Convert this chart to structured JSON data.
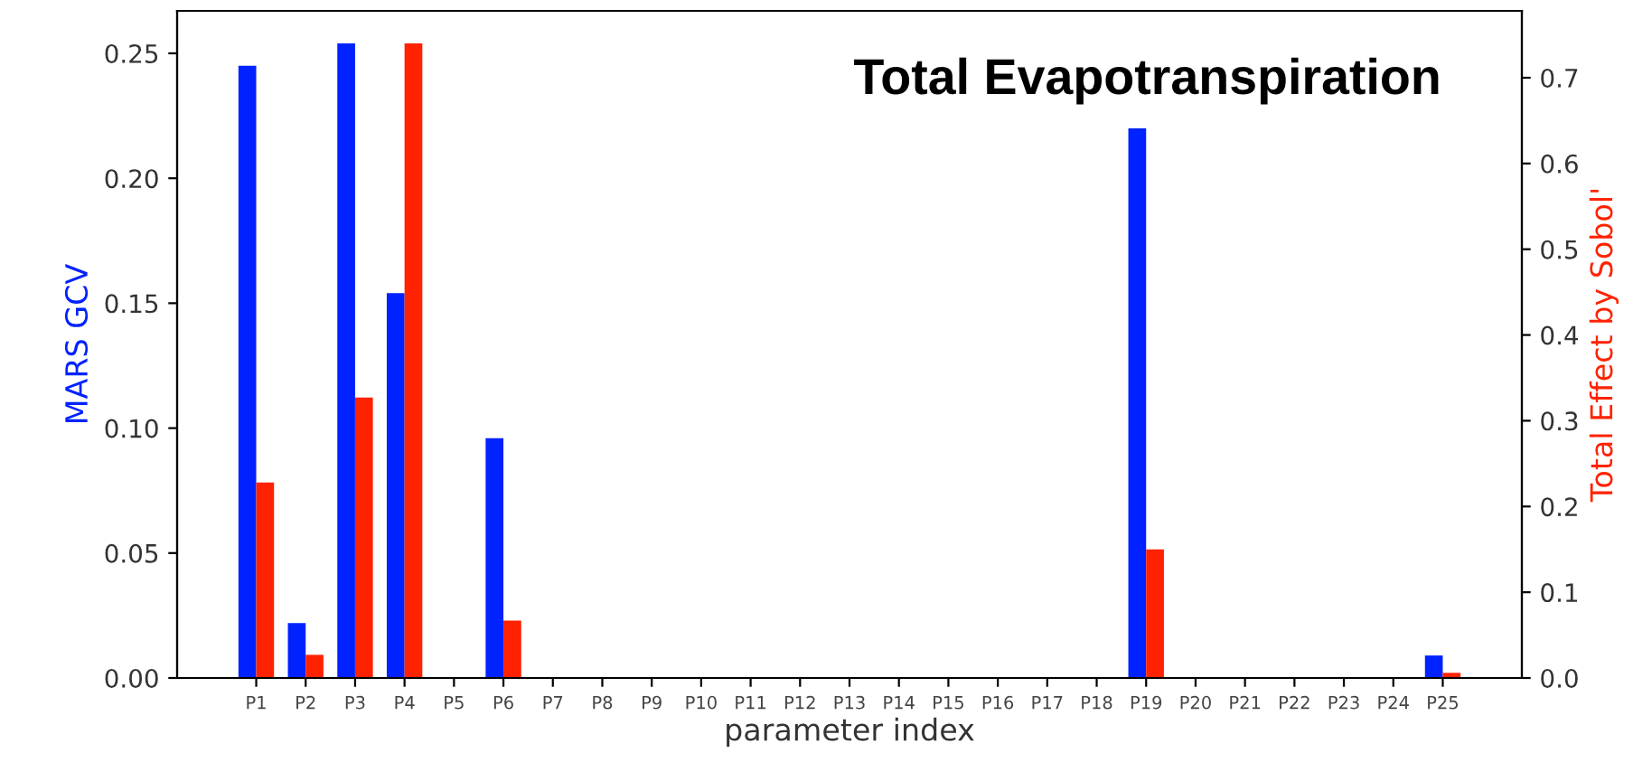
{
  "chart_data": {
    "type": "bar",
    "title": "Total Evapotranspiration",
    "xlabel": "parameter index",
    "ylabel": "MARS GCV",
    "y2label": "Total Effect by Sobol'",
    "categories": [
      "P1",
      "P2",
      "P3",
      "P4",
      "P5",
      "P6",
      "P7",
      "P8",
      "P9",
      "P10",
      "P11",
      "P12",
      "P13",
      "P14",
      "P15",
      "P16",
      "P17",
      "P18",
      "P19",
      "P20",
      "P21",
      "P22",
      "P23",
      "P24",
      "P25"
    ],
    "series": [
      {
        "color": "#0022ff",
        "values": [
          0.245,
          0.022,
          0.254,
          0.154,
          0,
          0.096,
          0,
          0,
          0,
          0,
          0,
          0,
          0,
          0,
          0,
          0,
          0,
          0,
          0.22,
          0,
          0,
          0,
          0,
          0,
          0.009
        ]
      },
      {
        "color": "#ff2200",
        "axis": "y2",
        "values": [
          0.228,
          0.027,
          0.327,
          0.74,
          0,
          0.067,
          0,
          0,
          0,
          0,
          0,
          0,
          0,
          0,
          0,
          0,
          0,
          0,
          0.15,
          0,
          0,
          0,
          0,
          0,
          0.006
        ]
      }
    ],
    "ylim": [
      0,
      0.267
    ],
    "yticks": [
      {
        "value": 0,
        "label": "0.00"
      },
      0.05,
      {
        "value": 0.1,
        "label": "0.10"
      },
      0.15,
      {
        "value": 0.2,
        "label": "0.20"
      },
      0.25
    ],
    "y2lim": [
      0,
      0.778
    ],
    "y2ticks": [
      {
        "value": 0,
        "label": "0.0"
      },
      0.1,
      0.2,
      0.3,
      0.4,
      0.5,
      0.6,
      0.7
    ],
    "grid": false,
    "legend": false
  }
}
